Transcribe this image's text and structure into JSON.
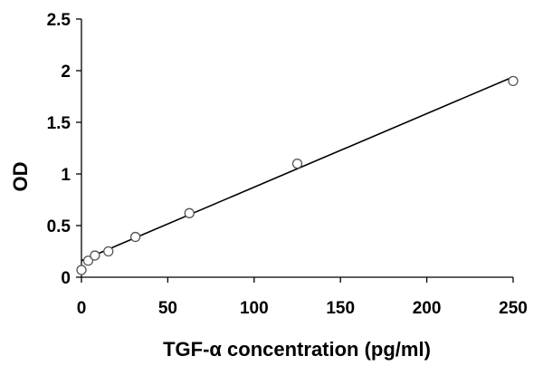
{
  "chart_data": {
    "type": "scatter",
    "title": "",
    "xlabel": "TGF-α concentration (pg/ml)",
    "ylabel": "OD",
    "xlim": [
      0,
      250
    ],
    "ylim": [
      0,
      2.5
    ],
    "xticks": [
      0,
      50,
      100,
      150,
      200,
      250
    ],
    "yticks": [
      0,
      0.5,
      1,
      1.5,
      2,
      2.5
    ],
    "xtick_labels": [
      "0",
      "50",
      "100",
      "150",
      "200",
      "250"
    ],
    "ytick_labels": [
      "0",
      "0.5",
      "1",
      "1.5",
      "2",
      "2.5"
    ],
    "grid": false,
    "legend": "none",
    "series": [
      {
        "x": [
          0,
          3.9,
          7.8,
          15.6,
          31.25,
          62.5,
          125,
          250
        ],
        "y": [
          0.07,
          0.16,
          0.21,
          0.25,
          0.39,
          0.62,
          1.1,
          1.9
        ],
        "marker": "open-circle",
        "color": "#555555"
      }
    ],
    "trendline": {
      "type": "linear",
      "x": [
        0,
        250
      ],
      "y": [
        0.16,
        1.94
      ],
      "color": "#000000"
    }
  }
}
